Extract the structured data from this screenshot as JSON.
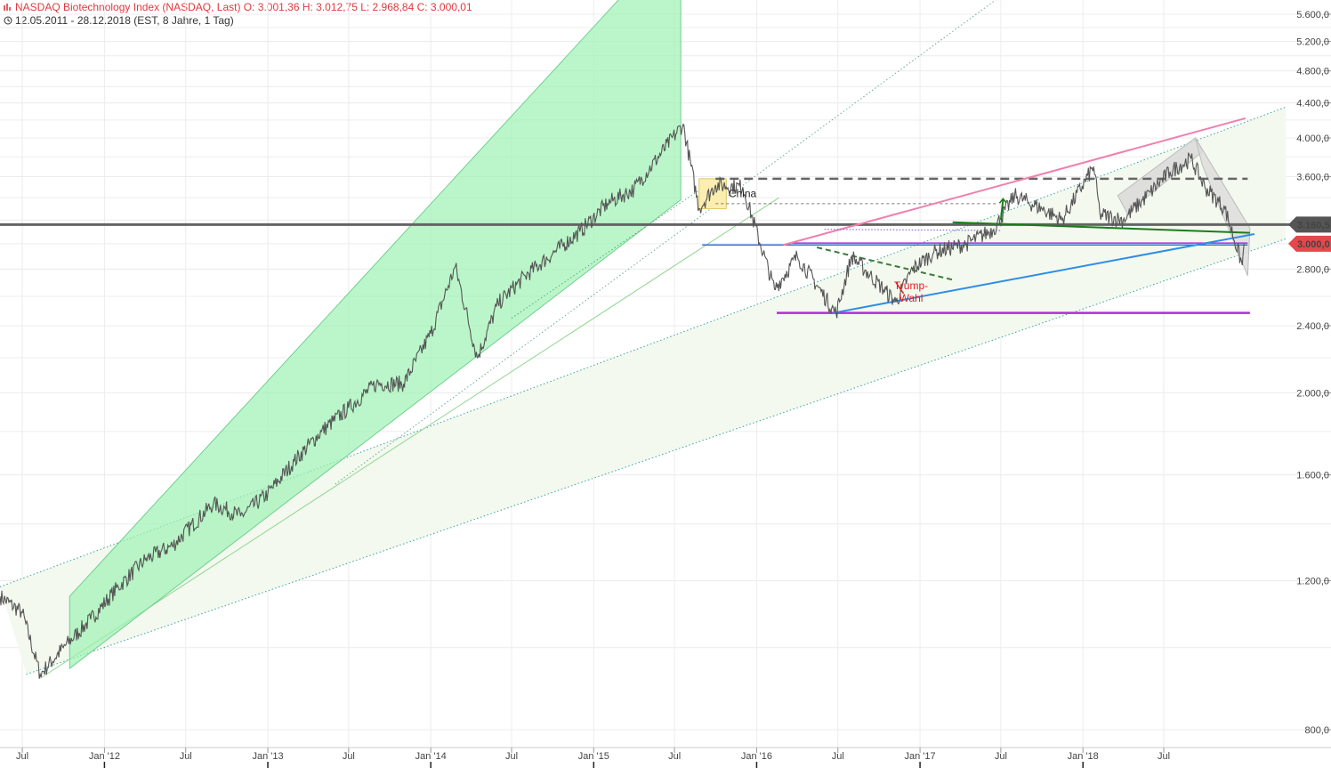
{
  "header": {
    "title_line": "NASDAQ Biotechnology Index (NASDAQ, Last)  O: 3.001,36  H: 3.012,75  L: 2.968,84  C: 3.000,01",
    "range_line": "12.05.2011 - 28.12.2018   (EST, 8 Jahre, 1 Tag)"
  },
  "colors": {
    "price": "#555555",
    "up_channel": "#9ef2b4",
    "red_badge": "#e5474b",
    "grey_badge": "#555555",
    "blue_line": "#2e8de6",
    "magenta_line": "#b12fd6",
    "pink_line": "#f07fae",
    "green_line": "#1a7d1a",
    "support_line": "#5a5a5a",
    "annotation_red": "#e02020"
  },
  "chart_data": {
    "type": "line",
    "title": "NASDAQ Biotechnology Index (NASDAQ, Last)",
    "y_scale": "log",
    "ylim": [
      780,
      5700
    ],
    "y_ticks": [
      800,
      1200,
      1600,
      2000,
      2400,
      2800,
      3600,
      4000,
      4400,
      4800,
      5200,
      5600
    ],
    "y_tick_labels": [
      "800,0",
      "1.200,0",
      "1.600,0",
      "2.000,0",
      "2.400,0",
      "2.800,0",
      "3.600,0",
      "4.000,0",
      "4.400,0",
      "4.800,0",
      "5.200,0",
      "5.600,0"
    ],
    "xlim": [
      "2011-05-12",
      "2019-03-31"
    ],
    "x_ticks": [
      "2011-07-01",
      "2012-01-01",
      "2012-07-01",
      "2013-01-01",
      "2013-07-01",
      "2014-01-01",
      "2014-07-01",
      "2015-01-01",
      "2015-07-01",
      "2016-01-01",
      "2016-07-01",
      "2017-01-01",
      "2017-07-01",
      "2018-01-01",
      "2018-07-01"
    ],
    "x_tick_labels": [
      "Jul",
      "Jan '12",
      "Jul",
      "Jan '13",
      "Jul",
      "Jan '14",
      "Jul",
      "Jan '15",
      "Jul",
      "Jan '16",
      "Jul",
      "Jan '17",
      "Jul",
      "Jan '18",
      "Jul"
    ],
    "series": [
      {
        "x": [
          "2011-05-12",
          "2011-07-01",
          "2011-08-10",
          "2011-10-01",
          "2011-12-01",
          "2012-02-01",
          "2012-04-01",
          "2012-06-01",
          "2012-09-01",
          "2012-11-01",
          "2013-01-01",
          "2013-03-01",
          "2013-05-01",
          "2013-07-01",
          "2013-09-01",
          "2013-11-01",
          "2014-01-01",
          "2014-02-25",
          "2014-04-15",
          "2014-06-01",
          "2014-08-01",
          "2014-10-01",
          "2014-12-01",
          "2015-02-01",
          "2015-04-01",
          "2015-07-20",
          "2015-08-25",
          "2015-10-01",
          "2015-12-01",
          "2016-02-10",
          "2016-04-01",
          "2016-06-27",
          "2016-08-01",
          "2016-11-08",
          "2016-12-15",
          "2017-02-01",
          "2017-04-15",
          "2017-06-15",
          "2017-08-01",
          "2017-10-01",
          "2017-11-15",
          "2018-01-25",
          "2018-02-08",
          "2018-04-01",
          "2018-06-01",
          "2018-07-15",
          "2018-08-31",
          "2018-10-01",
          "2018-11-15",
          "2018-12-24",
          "2018-12-28"
        ],
        "y": [
          1150,
          1100,
          930,
          1000,
          1080,
          1180,
          1270,
          1320,
          1480,
          1430,
          1520,
          1660,
          1800,
          1920,
          2050,
          2050,
          2350,
          2820,
          2200,
          2550,
          2750,
          2920,
          3100,
          3350,
          3480,
          4150,
          3300,
          3520,
          3500,
          2650,
          2900,
          2480,
          2900,
          2560,
          2800,
          2930,
          3000,
          3120,
          3420,
          3300,
          3200,
          3700,
          3250,
          3200,
          3450,
          3650,
          3780,
          3500,
          3300,
          2830,
          3000.01
        ]
      }
    ],
    "horizontal_levels": [
      {
        "y": 3160.5,
        "label": "3.160,5"
      },
      {
        "y": 3000.01,
        "label": "3.000,0"
      }
    ],
    "annotations": [
      "China",
      "Trump-\nWahl"
    ]
  }
}
